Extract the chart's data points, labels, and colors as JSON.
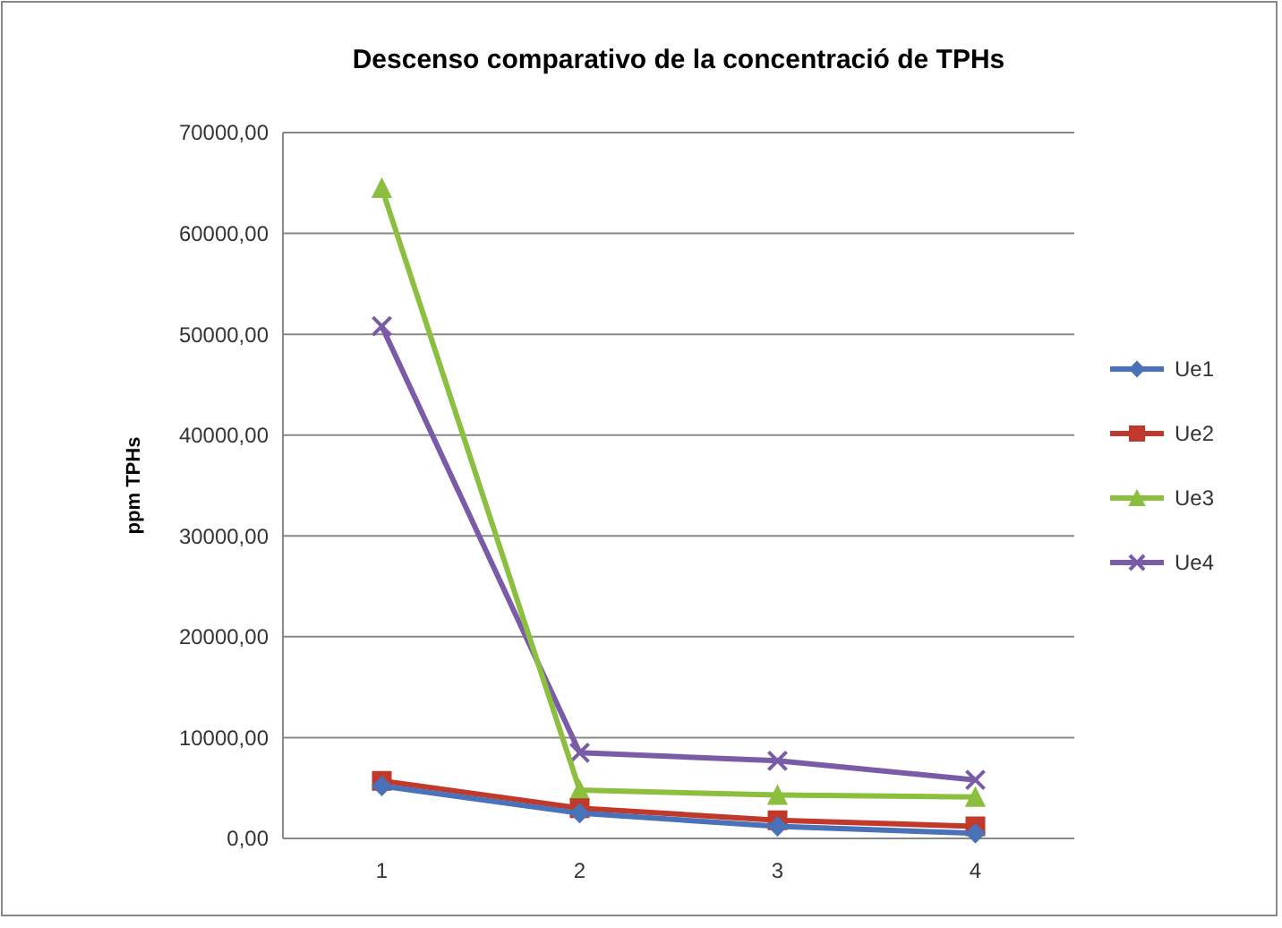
{
  "chart_data": {
    "type": "line",
    "title": "Descenso comparativo de la concentració de TPHs",
    "ylabel": "ppm TPHs",
    "categories": [
      "1",
      "2",
      "3",
      "4"
    ],
    "series": [
      {
        "name": "Ue1",
        "color": "#4a72b8",
        "marker": "diamond",
        "values": [
          5200,
          2500,
          1200,
          500
        ]
      },
      {
        "name": "Ue2",
        "color": "#c0392b",
        "marker": "square",
        "values": [
          5700,
          3000,
          1800,
          1200
        ]
      },
      {
        "name": "Ue3",
        "color": "#8cbf3f",
        "marker": "triangle",
        "values": [
          64500,
          4800,
          4300,
          4100
        ]
      },
      {
        "name": "Ue4",
        "color": "#7a5ba8",
        "marker": "cross",
        "values": [
          50800,
          8500,
          7700,
          5800
        ]
      }
    ],
    "ylim": [
      0,
      70000
    ],
    "yticks": [
      {
        "value": 0,
        "label": "0,00"
      },
      {
        "value": 10000,
        "label": "10000,00"
      },
      {
        "value": 20000,
        "label": "20000,00"
      },
      {
        "value": 30000,
        "label": "30000,00"
      },
      {
        "value": 40000,
        "label": "40000,00"
      },
      {
        "value": 50000,
        "label": "50000,00"
      },
      {
        "value": 60000,
        "label": "60000,00"
      },
      {
        "value": 70000,
        "label": "70000,00"
      }
    ],
    "grid": "y",
    "legend": "right"
  }
}
